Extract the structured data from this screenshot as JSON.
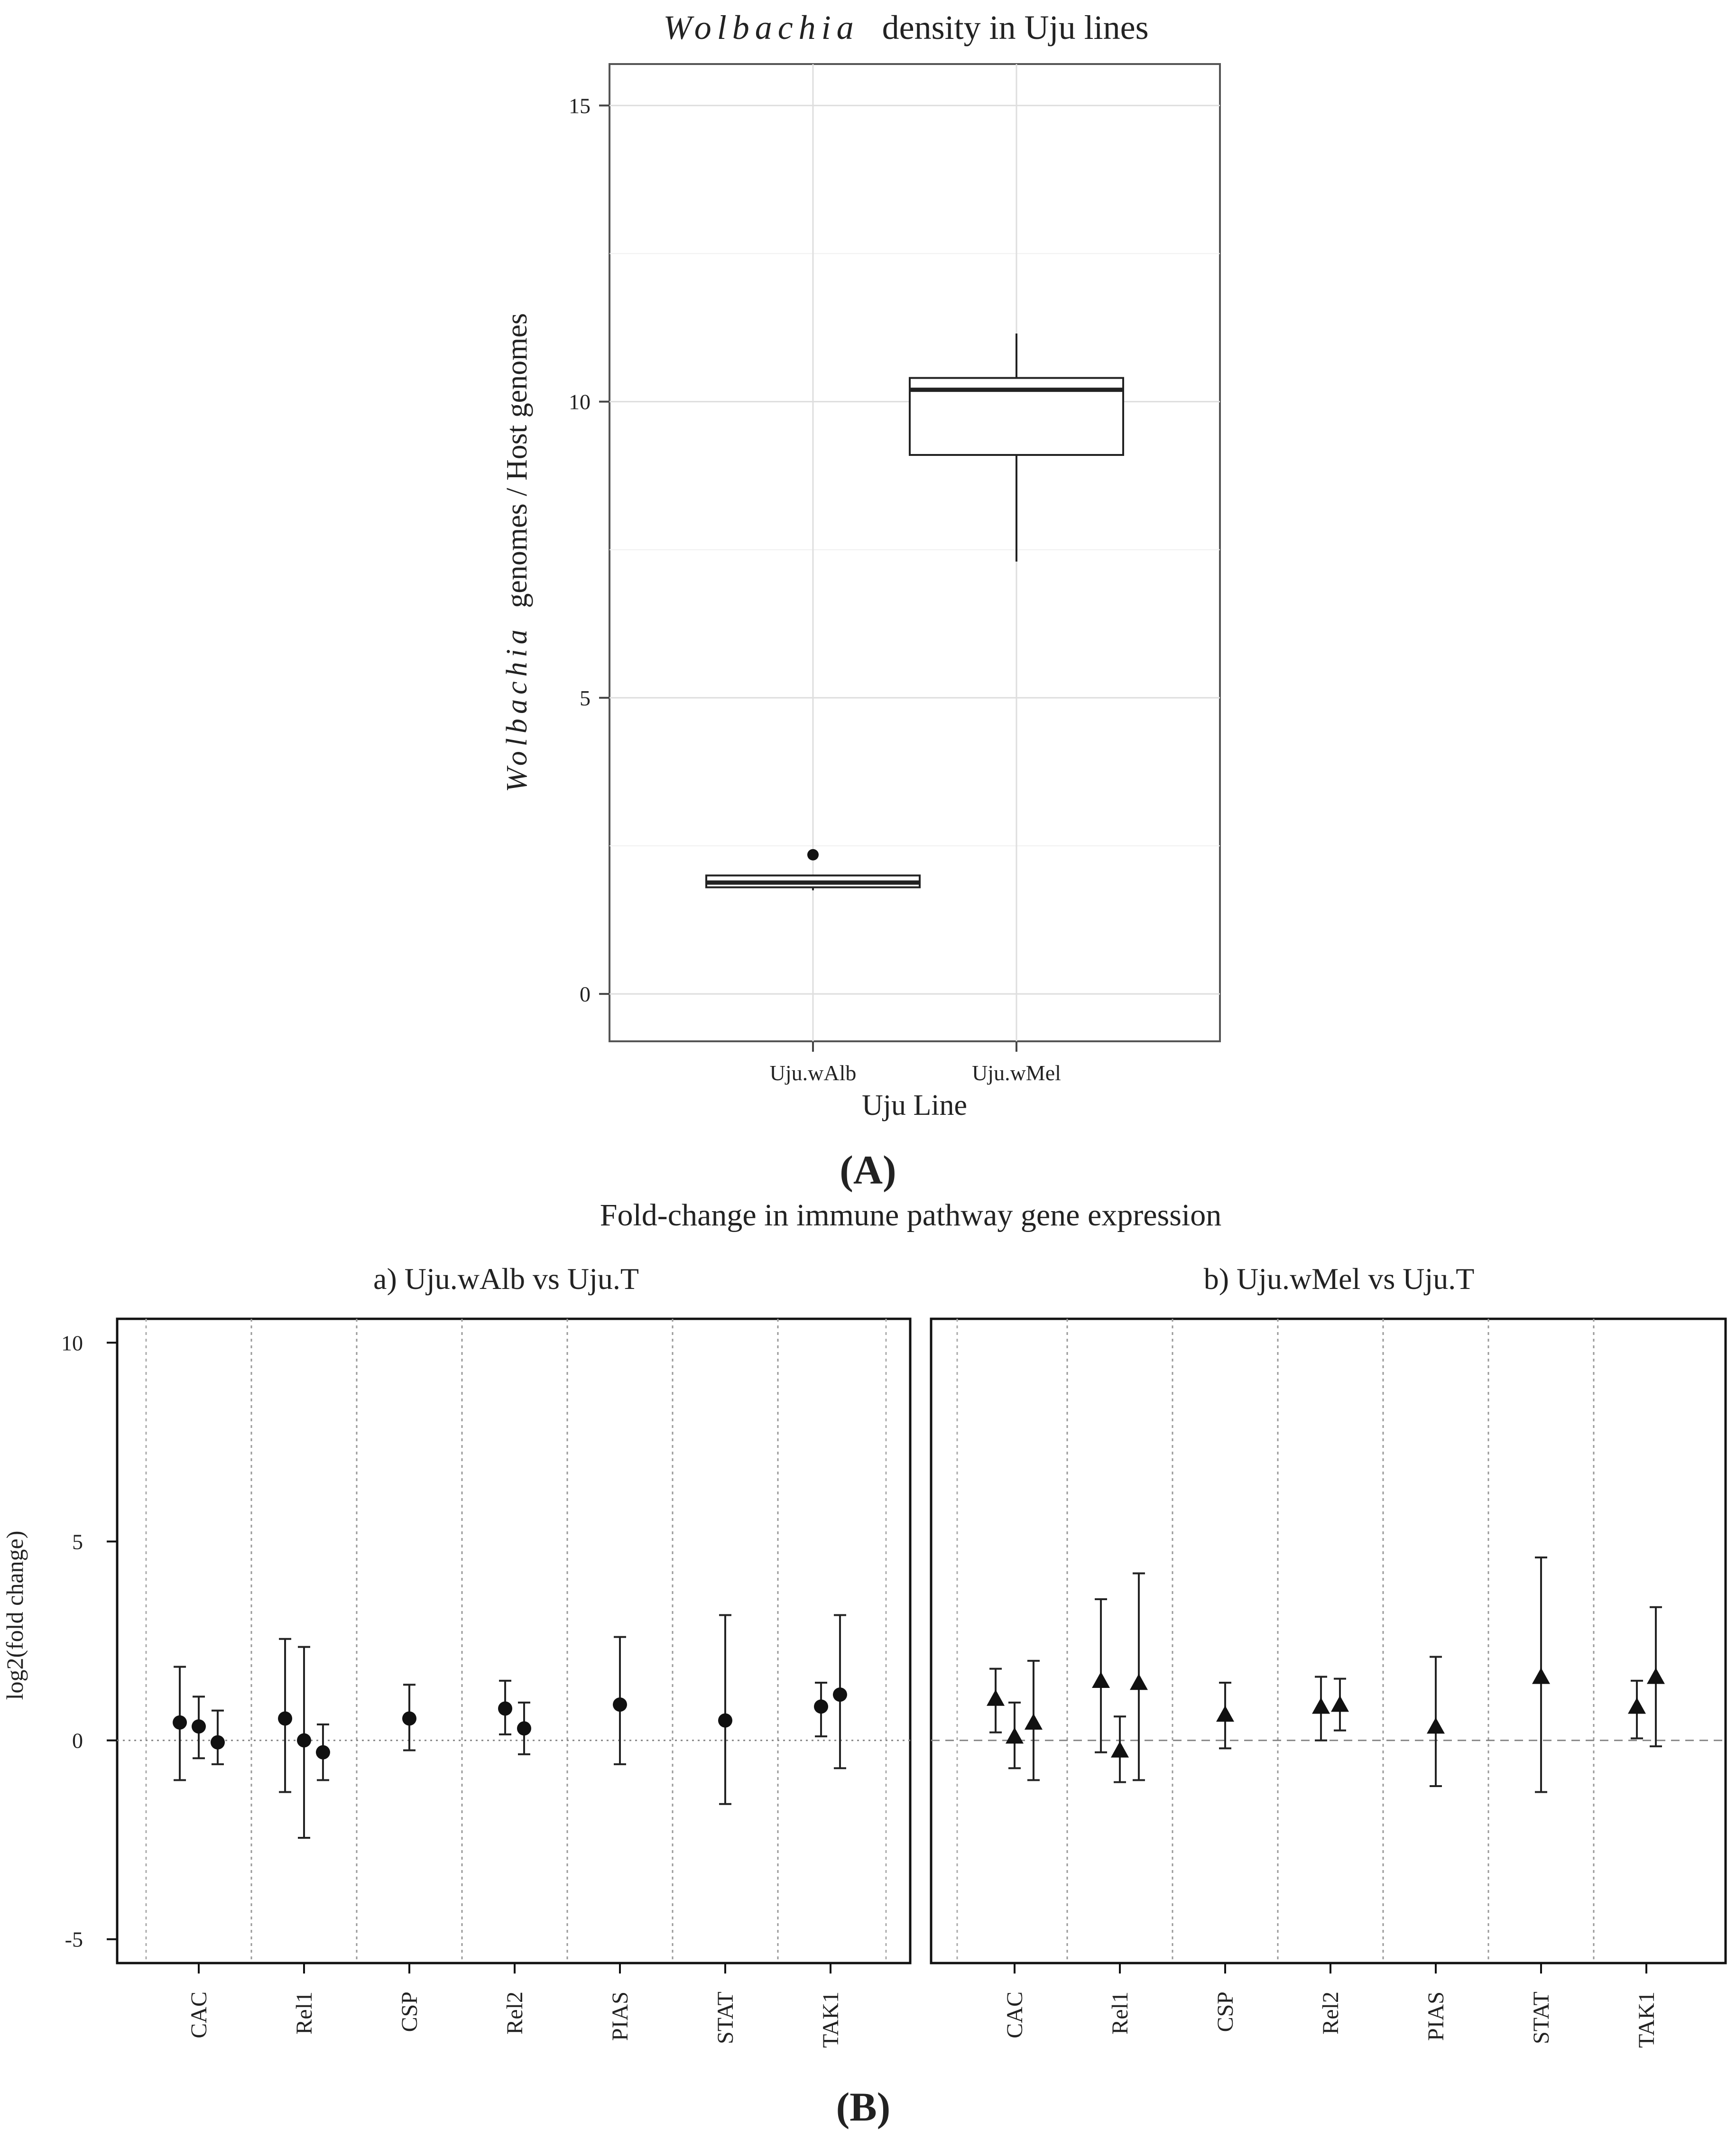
{
  "chart_data": [
    {
      "type": "box",
      "panel_label": "(A)",
      "title_italic": "Wolbachia",
      "title_rest": "density in Uju lines",
      "xlabel": "Uju Line",
      "ylabel_italic": "Wolbachia",
      "ylabel_rest": "genomes / Host genomes",
      "ylim": [
        -0.8,
        15.7
      ],
      "yticks": [
        "0",
        "5",
        "10",
        "15"
      ],
      "grid": true,
      "categories": [
        "Uju.wAlb",
        "Uju.wMel"
      ],
      "boxes": [
        {
          "name": "Uju.wAlb",
          "whisker_low": 1.75,
          "q1": 1.8,
          "median": 1.88,
          "q3": 2.0,
          "whisker_high": 2.0,
          "outliers": [
            2.35
          ]
        },
        {
          "name": "Uju.wMel",
          "whisker_low": 7.3,
          "q1": 9.1,
          "median": 10.2,
          "q3": 10.4,
          "whisker_high": 11.15,
          "outliers": []
        }
      ]
    },
    {
      "type": "errorbar",
      "panel_label": "(B)",
      "title": "Fold-change in immune pathway gene expression",
      "ylabel": "log2(fold change)",
      "ylim": [
        -5.6,
        10.6
      ],
      "yticks": [
        "-5",
        "0",
        "5",
        "10"
      ],
      "categories": [
        "CAC",
        "Rel1",
        "CSP",
        "Rel2",
        "PIAS",
        "STAT",
        "TAK1"
      ],
      "panels": [
        {
          "name": "a) Uju.wAlb vs Uju.T",
          "marker": "circle",
          "points": [
            {
              "gene": "CAC",
              "offset": -0.18,
              "y": 0.45,
              "lo": -1.0,
              "hi": 1.85
            },
            {
              "gene": "CAC",
              "offset": 0.0,
              "y": 0.35,
              "lo": -0.45,
              "hi": 1.1
            },
            {
              "gene": "CAC",
              "offset": 0.18,
              "y": -0.05,
              "lo": -0.6,
              "hi": 0.75
            },
            {
              "gene": "Rel1",
              "offset": -0.18,
              "y": 0.55,
              "lo": -1.3,
              "hi": 2.55
            },
            {
              "gene": "Rel1",
              "offset": 0.0,
              "y": 0.0,
              "lo": -2.45,
              "hi": 2.35
            },
            {
              "gene": "Rel1",
              "offset": 0.18,
              "y": -0.3,
              "lo": -1.0,
              "hi": 0.4
            },
            {
              "gene": "CSP",
              "offset": 0.0,
              "y": 0.55,
              "lo": -0.25,
              "hi": 1.4
            },
            {
              "gene": "Rel2",
              "offset": -0.09,
              "y": 0.8,
              "lo": 0.15,
              "hi": 1.5
            },
            {
              "gene": "Rel2",
              "offset": 0.09,
              "y": 0.3,
              "lo": -0.35,
              "hi": 0.95
            },
            {
              "gene": "PIAS",
              "offset": 0.0,
              "y": 0.9,
              "lo": -0.6,
              "hi": 2.6
            },
            {
              "gene": "STAT",
              "offset": 0.0,
              "y": 0.5,
              "lo": -1.6,
              "hi": 3.15
            },
            {
              "gene": "TAK1",
              "offset": -0.09,
              "y": 0.85,
              "lo": 0.1,
              "hi": 1.45
            },
            {
              "gene": "TAK1",
              "offset": 0.09,
              "y": 1.15,
              "lo": -0.7,
              "hi": 3.15
            }
          ]
        },
        {
          "name": "b) Uju.wMel vs Uju.T",
          "marker": "triangle",
          "points": [
            {
              "gene": "CAC",
              "offset": -0.18,
              "y": 1.05,
              "lo": 0.2,
              "hi": 1.8
            },
            {
              "gene": "CAC",
              "offset": 0.0,
              "y": 0.1,
              "lo": -0.7,
              "hi": 0.95
            },
            {
              "gene": "CAC",
              "offset": 0.18,
              "y": 0.45,
              "lo": -1.0,
              "hi": 2.0
            },
            {
              "gene": "Rel1",
              "offset": -0.18,
              "y": 1.5,
              "lo": -0.3,
              "hi": 3.55
            },
            {
              "gene": "Rel1",
              "offset": 0.0,
              "y": -0.25,
              "lo": -1.05,
              "hi": 0.6
            },
            {
              "gene": "Rel1",
              "offset": 0.18,
              "y": 1.45,
              "lo": -1.0,
              "hi": 4.2
            },
            {
              "gene": "CSP",
              "offset": 0.0,
              "y": 0.65,
              "lo": -0.2,
              "hi": 1.45
            },
            {
              "gene": "Rel2",
              "offset": -0.09,
              "y": 0.85,
              "lo": 0.0,
              "hi": 1.6
            },
            {
              "gene": "Rel2",
              "offset": 0.09,
              "y": 0.9,
              "lo": 0.25,
              "hi": 1.55
            },
            {
              "gene": "PIAS",
              "offset": 0.0,
              "y": 0.35,
              "lo": -1.15,
              "hi": 2.1
            },
            {
              "gene": "STAT",
              "offset": 0.0,
              "y": 1.6,
              "lo": -1.3,
              "hi": 4.6
            },
            {
              "gene": "TAK1",
              "offset": -0.09,
              "y": 0.85,
              "lo": 0.05,
              "hi": 1.5
            },
            {
              "gene": "TAK1",
              "offset": 0.09,
              "y": 1.6,
              "lo": -0.15,
              "hi": 3.35
            }
          ]
        }
      ]
    }
  ]
}
